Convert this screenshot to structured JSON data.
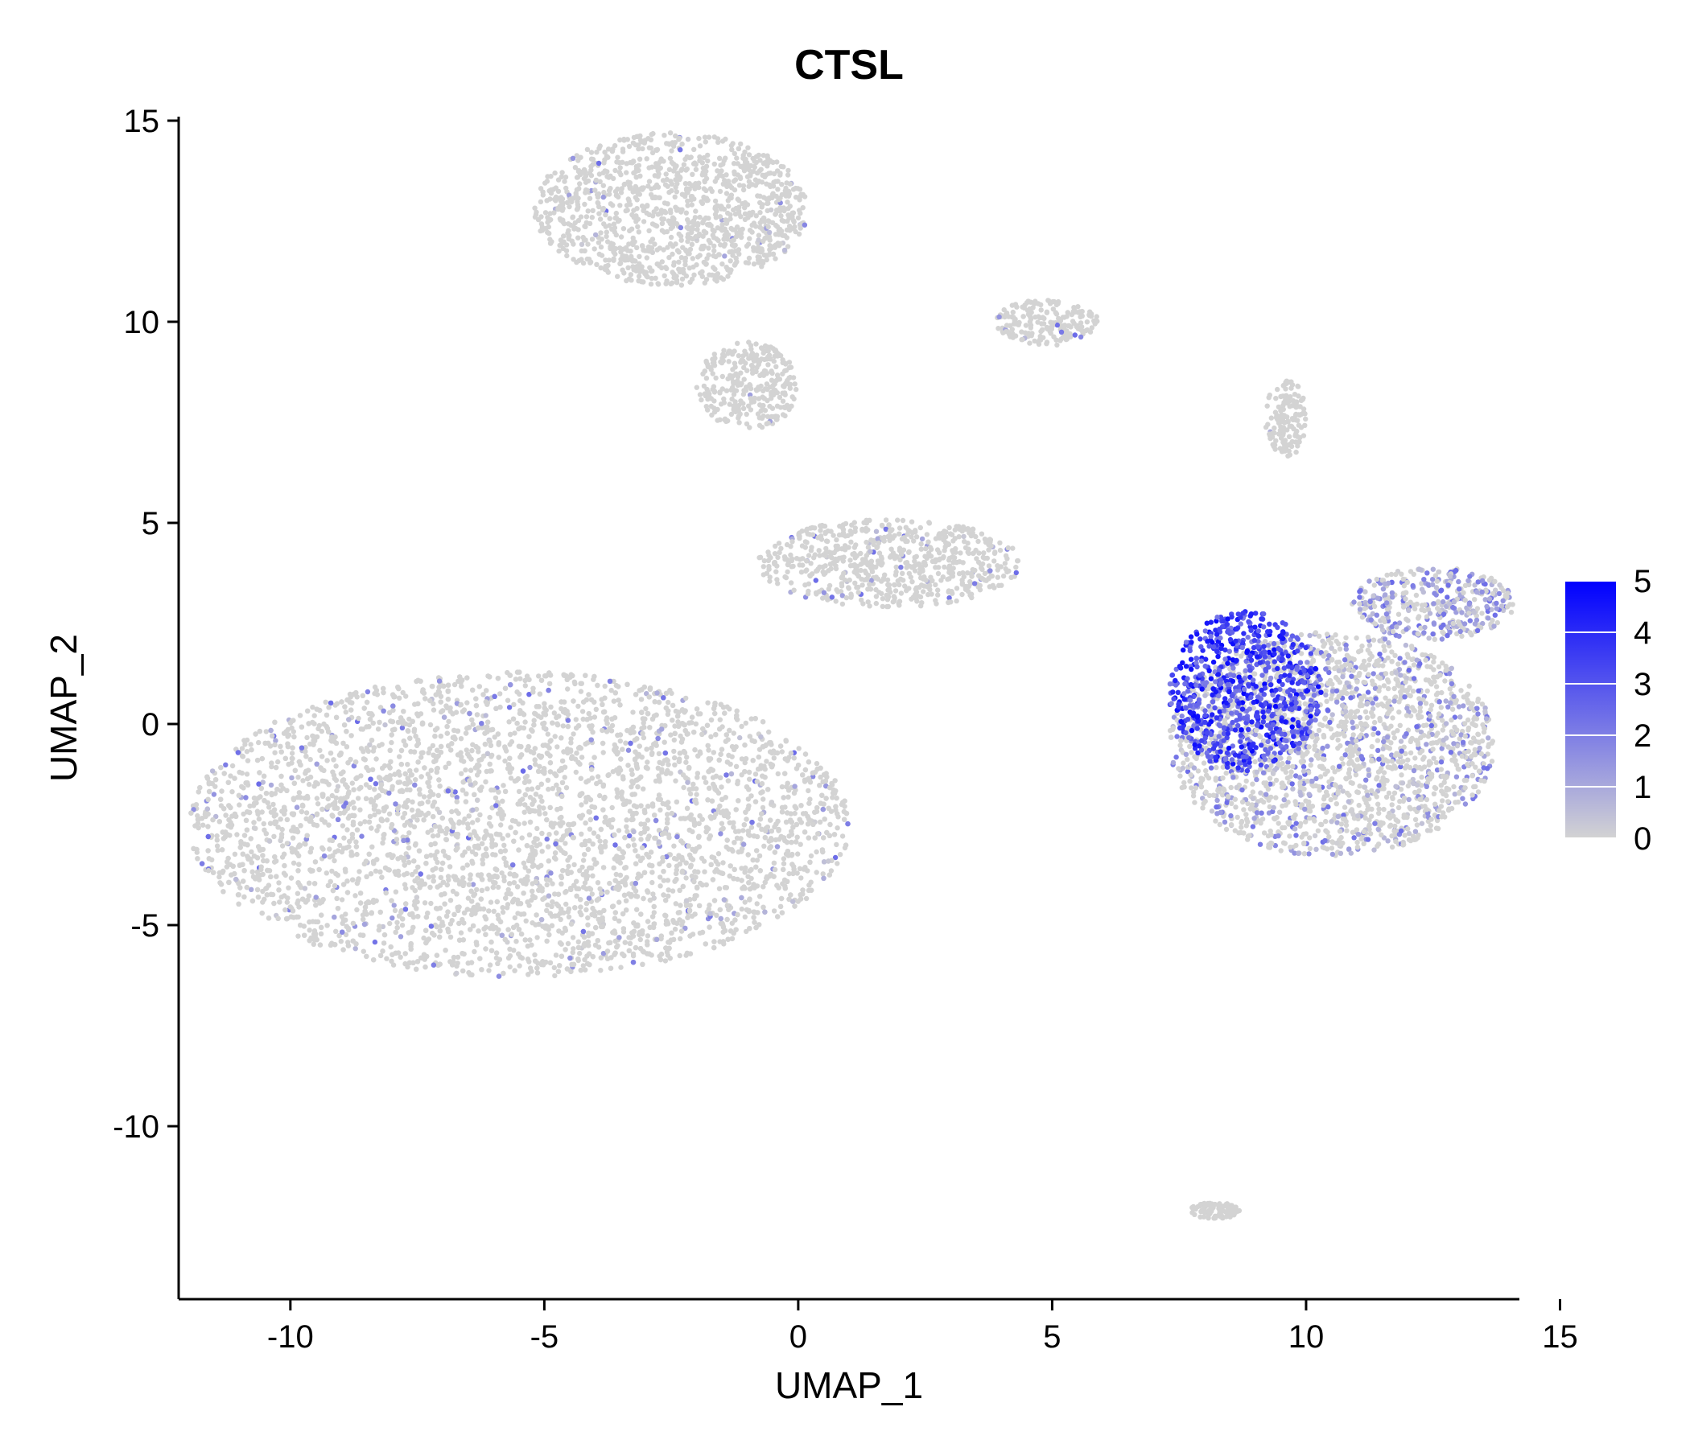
{
  "chart_data": {
    "type": "scatter",
    "title": "CTSL",
    "xlabel": "UMAP_1",
    "ylabel": "UMAP_2",
    "xlim": [
      -12.2,
      14.2
    ],
    "ylim": [
      -14.3,
      15.1
    ],
    "x_ticks": [
      -10,
      -5,
      0,
      5,
      10,
      15
    ],
    "y_ticks": [
      -10,
      -5,
      0,
      5,
      10,
      15
    ],
    "x_tick_labels": [
      "-10",
      "-5",
      "0",
      "5",
      "10",
      "15"
    ],
    "y_tick_labels": [
      "-10",
      "-5",
      "0",
      "5",
      "10",
      "15"
    ],
    "grid": false,
    "legend": {
      "position": "right",
      "type": "colorbar",
      "title": "",
      "range": [
        0,
        5
      ],
      "ticks": [
        0,
        1,
        2,
        3,
        4,
        5
      ],
      "tick_labels": [
        "0",
        "1",
        "2",
        "3",
        "4",
        "5"
      ],
      "low_color": "#d3d3d3",
      "high_color": "#0000ff"
    },
    "point_color_low": "#d3d3d3",
    "point_color_high": "#0000ff",
    "clusters": [
      {
        "name": "top-left cluster",
        "cx": -2.5,
        "cy": 12.8,
        "rx": 2.7,
        "ry": 1.9,
        "mean_expr": 0.02
      },
      {
        "name": "mid upper cluster",
        "cx": -1.0,
        "cy": 8.4,
        "rx": 1.0,
        "ry": 1.1,
        "mean_expr": 0.02
      },
      {
        "name": "right branch",
        "cx": 4.9,
        "cy": 10.0,
        "rx": 1.0,
        "ry": 0.6,
        "mean_expr": 0.03
      },
      {
        "name": "center bridge",
        "cx": 1.8,
        "cy": 4.0,
        "rx": 2.6,
        "ry": 1.1,
        "mean_expr": 0.05
      },
      {
        "name": "large left mass",
        "cx": -5.5,
        "cy": -2.5,
        "rx": 6.5,
        "ry": 3.8,
        "mean_expr": 0.06
      },
      {
        "name": "right cluster",
        "cx": 10.5,
        "cy": -0.5,
        "rx": 3.2,
        "ry": 2.8,
        "mean_expr": 0.3
      },
      {
        "name": "high CTSL region",
        "cx": 8.8,
        "cy": 0.8,
        "rx": 1.5,
        "ry": 2.0,
        "mean_expr": 3.4
      },
      {
        "name": "upper-right arm",
        "cx": 12.5,
        "cy": 3.0,
        "rx": 1.6,
        "ry": 0.9,
        "mean_expr": 0.6
      },
      {
        "name": "top spike",
        "cx": 9.6,
        "cy": 7.6,
        "rx": 0.4,
        "ry": 1.0,
        "mean_expr": 0.02
      },
      {
        "name": "small bottom cluster",
        "cx": 8.2,
        "cy": -12.1,
        "rx": 0.5,
        "ry": 0.2,
        "mean_expr": 0.0
      }
    ]
  }
}
